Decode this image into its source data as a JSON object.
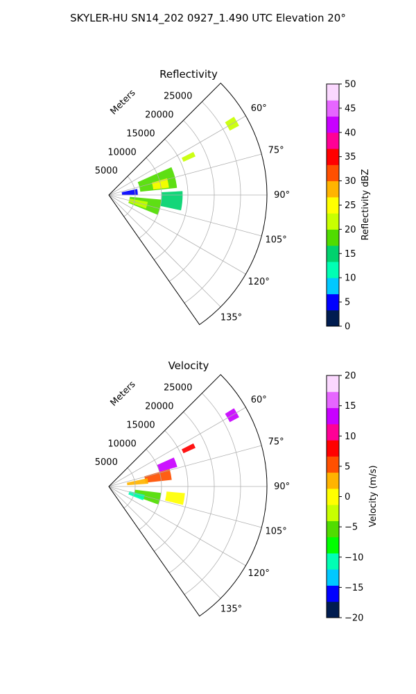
{
  "figure": {
    "title": "SKYLER-HU  SN14_202  0927_1.490 UTC Elevation 20°"
  },
  "chart_data": [
    {
      "type": "heatmap",
      "projection": "polar-sector",
      "title": "Reflectivity",
      "range_axis_label": "Meters",
      "range_ticks": [
        5000,
        10000,
        15000,
        20000,
        25000
      ],
      "range_tick_labels": [
        "5000",
        "10000",
        "15000",
        "20000",
        "25000"
      ],
      "range_lim": [
        0,
        30000
      ],
      "azimuth_lim_deg": [
        45,
        145
      ],
      "azimuth_ticks_deg": [
        60,
        75,
        90,
        105,
        120,
        135
      ],
      "azimuth_tick_labels": [
        "60°",
        "75°",
        "90°",
        "105°",
        "120°",
        "135°"
      ],
      "grid": true,
      "colorbar": {
        "label": "Reflectivity dBZ",
        "min": 0,
        "max": 50,
        "ticks": [
          0,
          5,
          10,
          15,
          20,
          25,
          30,
          35,
          40,
          45,
          50
        ],
        "tick_labels": [
          "0",
          "5",
          "10",
          "15",
          "20",
          "25",
          "30",
          "35",
          "40",
          "45",
          "50"
        ],
        "colormap": [
          "#001c50",
          "#0000ff",
          "#00c8ff",
          "#00ffb4",
          "#00d26e",
          "#50dc00",
          "#c8ff00",
          "#ffff00",
          "#ffb400",
          "#ff5000",
          "#ff0000",
          "#ff0096",
          "#c800ff",
          "#e666ff",
          "#fbd8ff"
        ]
      },
      "echoes": [
        {
          "az": [
            66,
            84
          ],
          "r": [
            6000,
            13000
          ],
          "value": 18
        },
        {
          "az": [
            74,
            83
          ],
          "r": [
            8500,
            11500
          ],
          "value": 26
        },
        {
          "az": [
            95,
            112
          ],
          "r": [
            4000,
            10000
          ],
          "value": 17
        },
        {
          "az": [
            100,
            110
          ],
          "r": [
            4000,
            7500
          ],
          "value": 22
        },
        {
          "az": [
            87,
            102
          ],
          "r": [
            10000,
            14000
          ],
          "value": 15
        },
        {
          "az": [
            78,
            90
          ],
          "r": [
            2500,
            5500
          ],
          "value": 6
        },
        {
          "az": [
            63,
            66
          ],
          "r": [
            15500,
            18000
          ],
          "value": 22
        },
        {
          "az": [
            58,
            62
          ],
          "r": [
            26000,
            28000
          ],
          "value": 23
        }
      ]
    },
    {
      "type": "heatmap",
      "projection": "polar-sector",
      "title": "Velocity",
      "range_axis_label": "Meters",
      "range_ticks": [
        5000,
        10000,
        15000,
        20000,
        25000
      ],
      "range_tick_labels": [
        "5000",
        "10000",
        "15000",
        "20000",
        "25000"
      ],
      "range_lim": [
        0,
        30000
      ],
      "azimuth_lim_deg": [
        45,
        145
      ],
      "azimuth_ticks_deg": [
        60,
        75,
        90,
        105,
        120,
        135
      ],
      "azimuth_tick_labels": [
        "60°",
        "75°",
        "90°",
        "105°",
        "120°",
        "135°"
      ],
      "grid": true,
      "colorbar": {
        "label": "Velocity (m/s)",
        "min": -20,
        "max": 20,
        "ticks": [
          -20,
          -15,
          -10,
          -5,
          0,
          5,
          10,
          15,
          20
        ],
        "tick_labels": [
          "−20",
          "−15",
          "−10",
          "−5",
          "0",
          "5",
          "10",
          "15",
          "20"
        ],
        "colormap": [
          "#001c50",
          "#0000ff",
          "#00c8ff",
          "#00ffb4",
          "#00ff00",
          "#50dc00",
          "#c8ff00",
          "#ffff00",
          "#ffb400",
          "#ff5000",
          "#ff0000",
          "#ff0096",
          "#c800ff",
          "#e666ff",
          "#fbd8ff"
        ]
      },
      "echoes": [
        {
          "az": [
            66,
            74
          ],
          "r": [
            10000,
            13500
          ],
          "value": 14
        },
        {
          "az": [
            74,
            84
          ],
          "r": [
            7000,
            12000
          ],
          "value": 6
        },
        {
          "az": [
            78,
            86
          ],
          "r": [
            3500,
            7500
          ],
          "value": 2
        },
        {
          "az": [
            95,
            104
          ],
          "r": [
            11000,
            14500
          ],
          "value": 0
        },
        {
          "az": [
            97,
            110
          ],
          "r": [
            5000,
            10000
          ],
          "value": -5
        },
        {
          "az": [
            103,
            112
          ],
          "r": [
            4000,
            7000
          ],
          "value": -11
        },
        {
          "az": [
            63,
            66
          ],
          "r": [
            15500,
            18000
          ],
          "value": 8
        },
        {
          "az": [
            58,
            62
          ],
          "r": [
            26000,
            28000
          ],
          "value": 12
        }
      ]
    }
  ]
}
